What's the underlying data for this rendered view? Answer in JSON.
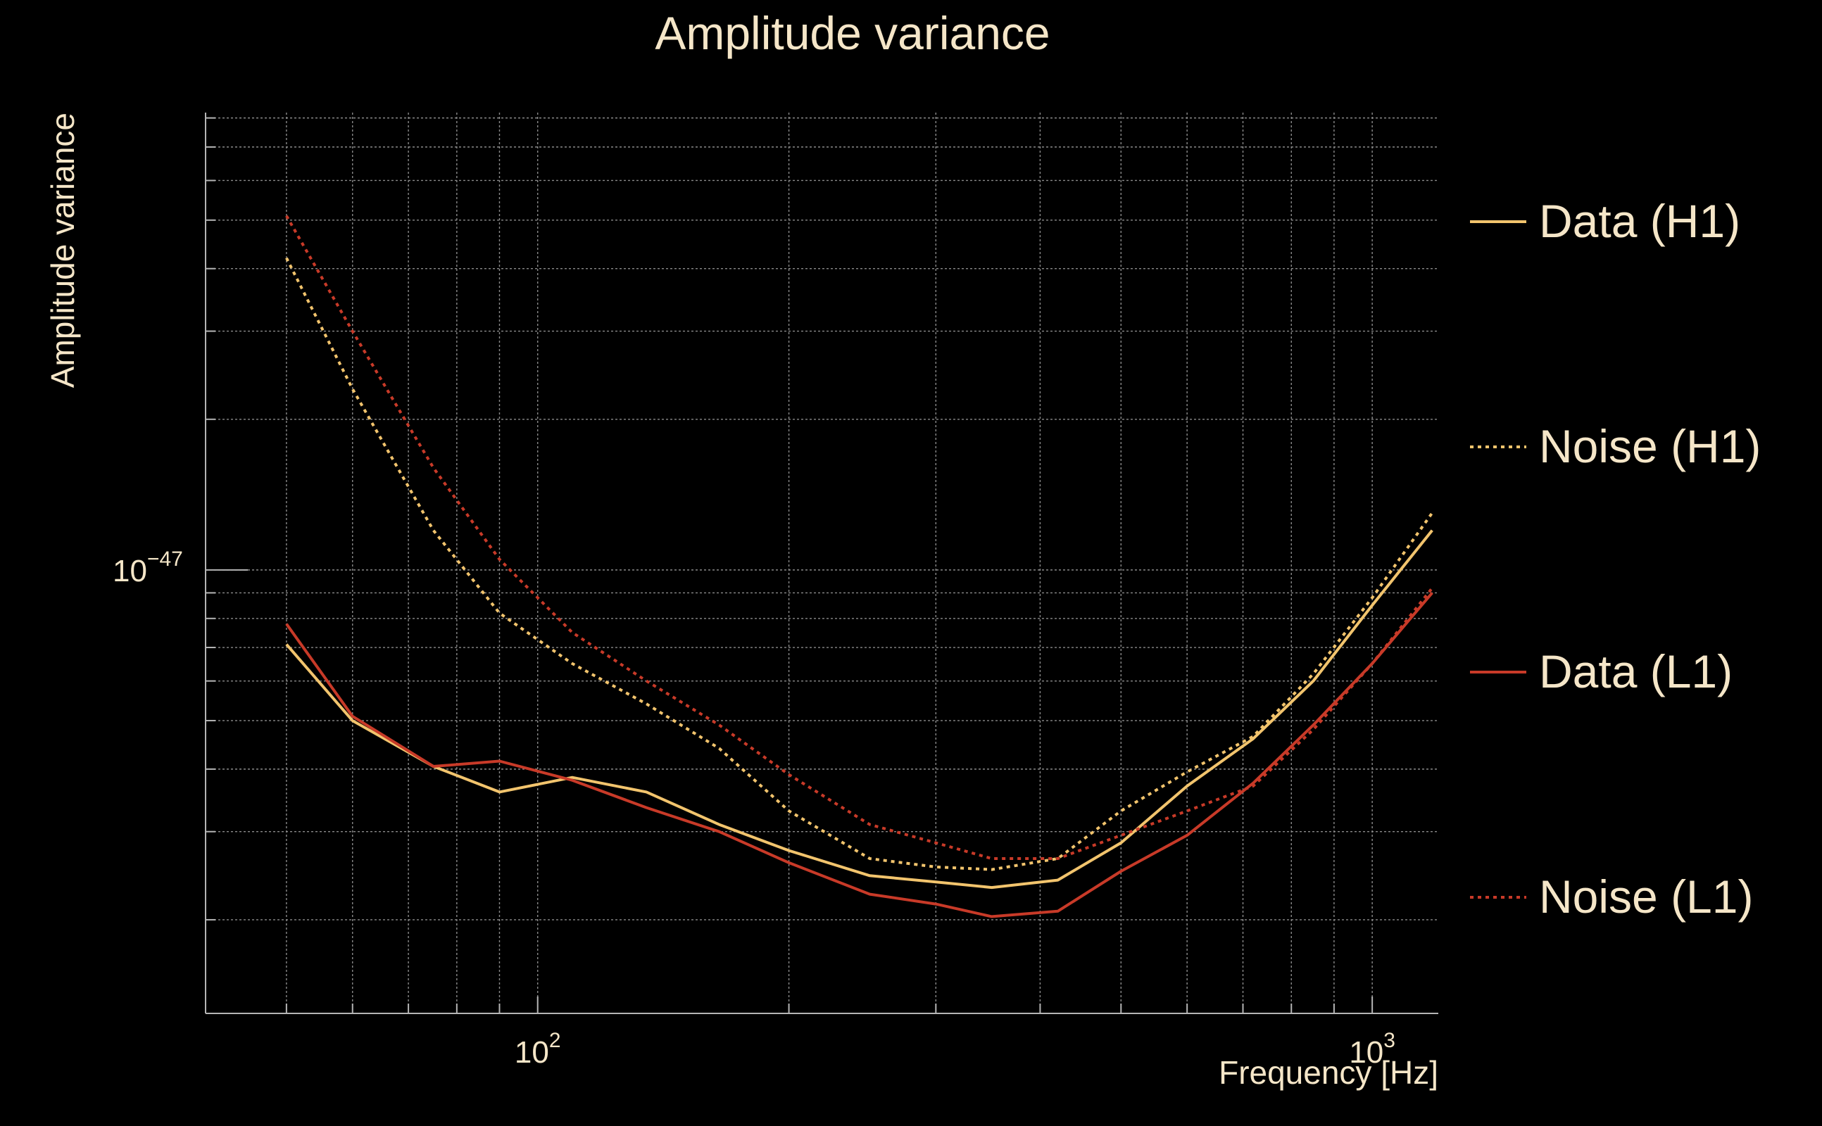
{
  "chart_data": {
    "type": "line",
    "title": "Amplitude variance",
    "xlabel": "Frequency [Hz]",
    "ylabel": "Amplitude variance",
    "x_scale": "log",
    "y_scale": "log",
    "xlim": [
      40,
      1200
    ],
    "ylim": [
      1.3e-48,
      8.2e-47
    ],
    "xticks": [
      {
        "value": 100,
        "base": "10",
        "exp": "2"
      },
      {
        "value": 1000,
        "base": "10",
        "exp": "3"
      }
    ],
    "yticks": [
      {
        "value": 1e-47,
        "base": "10",
        "exp": "−47"
      }
    ],
    "grid": true,
    "legend_position": "right",
    "series": [
      {
        "name": "Data (H1)",
        "color": "#f2c46d",
        "style": "solid",
        "x": [
          50,
          60,
          75,
          90,
          110,
          135,
          165,
          200,
          250,
          300,
          350,
          420,
          500,
          600,
          720,
          850,
          1000,
          1180
        ],
        "y": [
          7.1e-48,
          5e-48,
          4.05e-48,
          3.6e-48,
          3.85e-48,
          3.6e-48,
          3.1e-48,
          2.75e-48,
          2.45e-48,
          2.38e-48,
          2.32e-48,
          2.4e-48,
          2.85e-48,
          3.7e-48,
          4.6e-48,
          6e-48,
          8.5e-48,
          1.2e-47
        ]
      },
      {
        "name": "Noise (H1)",
        "color": "#f2c46d",
        "style": "dotted",
        "x": [
          50,
          60,
          75,
          90,
          110,
          135,
          165,
          200,
          250,
          300,
          350,
          420,
          500,
          600,
          720,
          850,
          1000,
          1180
        ],
        "y": [
          4.2e-47,
          2.3e-47,
          1.2e-47,
          8.2e-48,
          6.5e-48,
          5.4e-48,
          4.4e-48,
          3.3e-48,
          2.65e-48,
          2.55e-48,
          2.52e-48,
          2.65e-48,
          3.3e-48,
          3.95e-48,
          4.65e-48,
          6.2e-48,
          8.8e-48,
          1.3e-47
        ]
      },
      {
        "name": "Data (L1)",
        "color": "#c83a28",
        "style": "solid",
        "x": [
          50,
          60,
          75,
          90,
          110,
          135,
          165,
          200,
          250,
          300,
          350,
          420,
          500,
          600,
          720,
          850,
          1000,
          1180
        ],
        "y": [
          7.8e-48,
          5.1e-48,
          4.05e-48,
          4.15e-48,
          3.8e-48,
          3.35e-48,
          3e-48,
          2.6e-48,
          2.25e-48,
          2.15e-48,
          2.03e-48,
          2.08e-48,
          2.5e-48,
          2.95e-48,
          3.75e-48,
          4.9e-48,
          6.5e-48,
          9e-48
        ]
      },
      {
        "name": "Noise (L1)",
        "color": "#c83a28",
        "style": "dotted",
        "x": [
          50,
          60,
          75,
          90,
          110,
          135,
          165,
          200,
          250,
          300,
          350,
          420,
          500,
          600,
          720,
          850,
          1000,
          1180
        ],
        "y": [
          5.1e-47,
          3e-47,
          1.6e-47,
          1.05e-47,
          7.5e-48,
          6e-48,
          4.9e-48,
          3.9e-48,
          3.1e-48,
          2.85e-48,
          2.65e-48,
          2.65e-48,
          2.95e-48,
          3.3e-48,
          3.7e-48,
          4.8e-48,
          6.5e-48,
          9.2e-48
        ]
      }
    ]
  }
}
